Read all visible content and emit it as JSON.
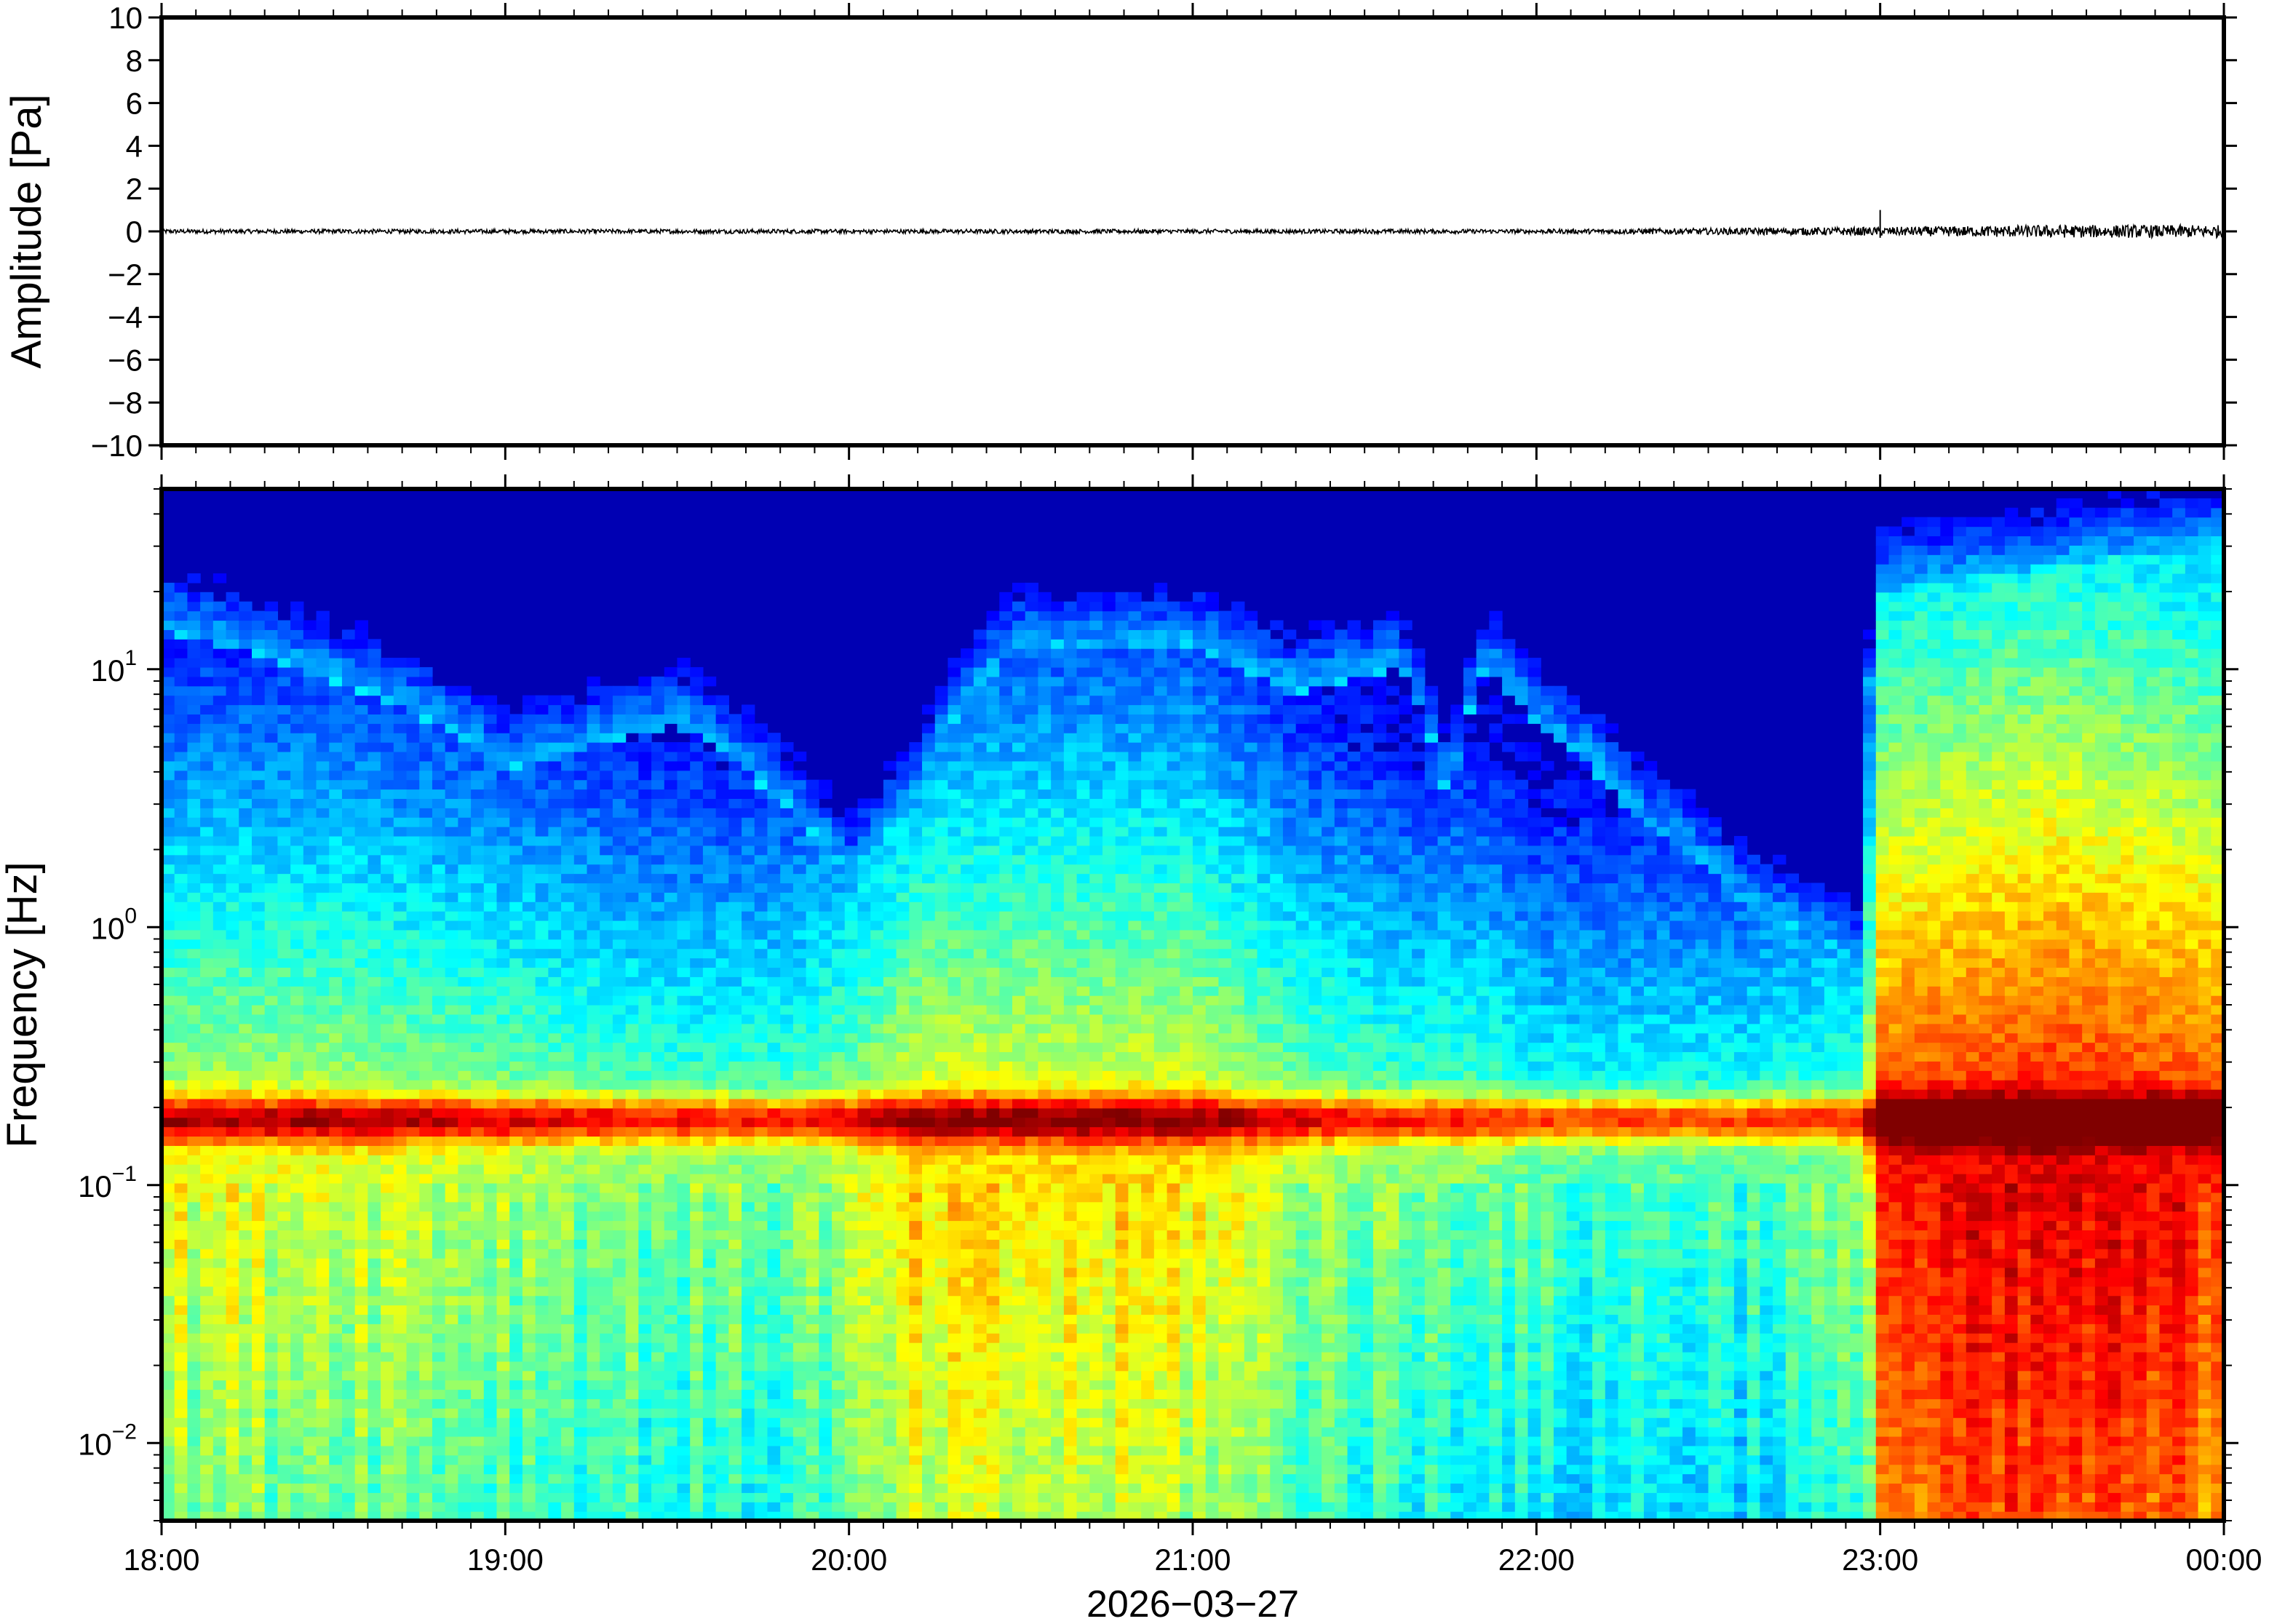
{
  "chart_data": [
    {
      "type": "line",
      "title": "",
      "xlabel": "",
      "ylabel": "Amplitude [Pa]",
      "ylim": [
        -10,
        10
      ],
      "yticks": [
        -10,
        -8,
        -6,
        -4,
        -2,
        0,
        2,
        4,
        6,
        8,
        10
      ],
      "ytick_labels": [
        "−10",
        "−8",
        "−6",
        "−4",
        "−2",
        "0",
        "2",
        "4",
        "6",
        "8",
        "10"
      ],
      "xlim": [
        "2026-03-27T18:00",
        "2026-03-28T00:00"
      ],
      "series": [
        {
          "x": [
            "2026-03-27T18:00",
            "2026-03-27T19:00",
            "2026-03-27T20:00",
            "2026-03-27T21:00",
            "2026-03-27T22:00",
            "2026-03-27T23:00",
            "2026-03-27T23:30",
            "2026-03-28T00:00"
          ],
          "noise_amplitude": [
            0.1,
            0.1,
            0.1,
            0.1,
            0.1,
            0.2,
            0.3,
            0.3
          ],
          "spikes": [
            {
              "x": "2026-03-27T23:00",
              "y": 1.0
            }
          ]
        }
      ]
    },
    {
      "type": "heatmap",
      "title": "",
      "xlabel": "2026−03−27",
      "ylabel": "Frequency [Hz]",
      "yscale": "log",
      "ylim": [
        0.005,
        50
      ],
      "yticks": [
        {
          "value": 0.01,
          "base": "10",
          "exp": "−2"
        },
        {
          "value": 0.1,
          "base": "10",
          "exp": "−1"
        },
        {
          "value": 1,
          "base": "10",
          "exp": "0"
        },
        {
          "value": 10,
          "base": "10",
          "exp": "1"
        }
      ],
      "xlim": [
        "2026-03-27T18:00",
        "2026-03-28T00:00"
      ],
      "xticks": [
        "18:00",
        "19:00",
        "20:00",
        "21:00",
        "22:00",
        "23:00",
        "00:00"
      ],
      "colormap": "jet",
      "microseism_peak_hz": 0.18,
      "time_profile": {
        "time_hours": [
          18.0,
          18.5,
          19.0,
          19.5,
          19.8,
          20.0,
          20.2,
          20.5,
          21.0,
          21.3,
          21.6,
          21.75,
          21.85,
          22.0,
          22.3,
          22.6,
          22.95,
          23.0,
          23.5,
          24.0
        ],
        "upper_cutoff_hz": [
          14,
          9,
          4,
          6,
          3,
          1.5,
          3,
          12,
          12,
          8,
          10,
          2.5,
          10,
          6,
          2.5,
          1.2,
          0.7,
          20,
          25,
          30
        ],
        "low_frequency_energy": [
          0.6,
          0.6,
          0.55,
          0.5,
          0.5,
          0.55,
          0.65,
          0.65,
          0.65,
          0.55,
          0.5,
          0.5,
          0.5,
          0.45,
          0.45,
          0.45,
          0.5,
          0.85,
          0.9,
          0.85
        ]
      }
    }
  ]
}
